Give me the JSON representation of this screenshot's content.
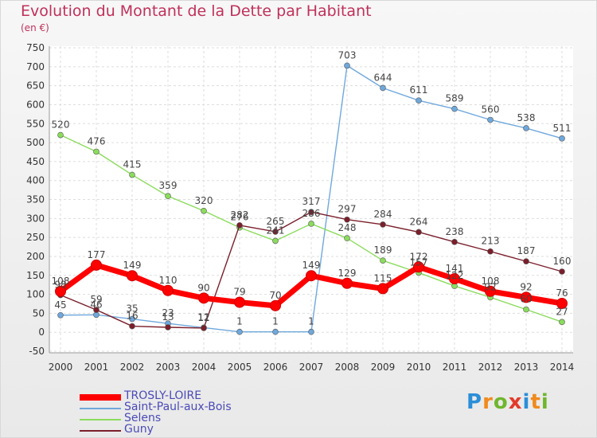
{
  "header": {
    "title": "Evolution du Montant de la Dette par Habitant",
    "unit": "(en €)"
  },
  "logo": {
    "text": "Proxiti",
    "colors": [
      "#2b8ed8",
      "#f08a1c",
      "#6fb62e",
      "#e23a2a",
      "#2b8ed8",
      "#f08a1c",
      "#6fb62e"
    ]
  },
  "chart_data": {
    "type": "line",
    "x": [
      2000,
      2001,
      2002,
      2003,
      2004,
      2005,
      2006,
      2007,
      2008,
      2009,
      2010,
      2011,
      2012,
      2013,
      2014
    ],
    "ylim": [
      -50,
      750
    ],
    "yticks": [
      -50,
      0,
      50,
      100,
      150,
      200,
      250,
      300,
      350,
      400,
      450,
      500,
      550,
      600,
      650,
      700,
      750
    ],
    "grid": true,
    "legend": "bottom-left",
    "series": [
      {
        "name": "TROSLY-LOIRE",
        "color": "#ff0000",
        "values": [
          108,
          177,
          149,
          110,
          90,
          79,
          70,
          149,
          129,
          115,
          172,
          141,
          108,
          92,
          76
        ]
      },
      {
        "name": "Saint-Paul-aux-Bois",
        "color": "#6fa8dc",
        "values": [
          45,
          46,
          35,
          23,
          12,
          1,
          1,
          1,
          703,
          644,
          611,
          589,
          560,
          538,
          511
        ]
      },
      {
        "name": "Selens",
        "color": "#8bdc5c",
        "values": [
          520,
          476,
          415,
          359,
          320,
          276,
          241,
          286,
          248,
          189,
          157,
          122,
          92,
          60,
          27
        ]
      },
      {
        "name": "Guny",
        "color": "#7a1f2b",
        "values": [
          98,
          59,
          16,
          13,
          11,
          282,
          265,
          317,
          297,
          284,
          264,
          238,
          213,
          187,
          160
        ]
      }
    ]
  }
}
